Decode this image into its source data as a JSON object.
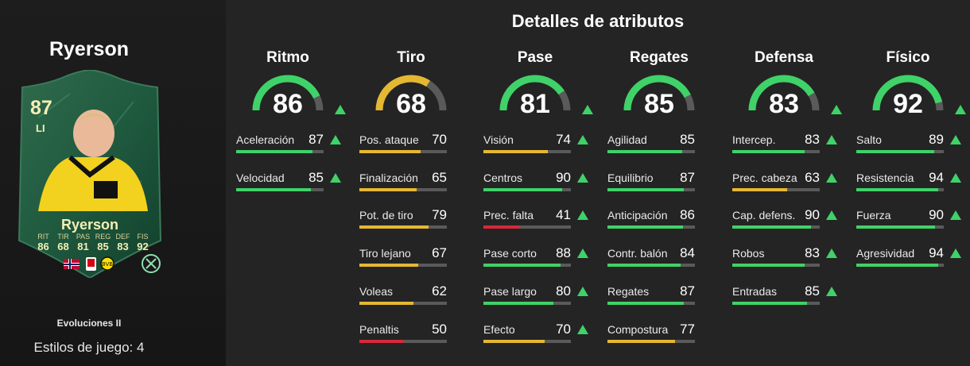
{
  "player": {
    "name": "Ryerson",
    "rating": "87",
    "position": "LI",
    "card_name": "Ryerson",
    "card_stats": [
      {
        "label": "RIT",
        "value": "86"
      },
      {
        "label": "TIR",
        "value": "68"
      },
      {
        "label": "PAS",
        "value": "81"
      },
      {
        "label": "REG",
        "value": "85"
      },
      {
        "label": "DEF",
        "value": "83"
      },
      {
        "label": "FIS",
        "value": "92"
      }
    ],
    "evolution": "Evoluciones II",
    "playstyles": "Estilos de juego: 4"
  },
  "title": "Detalles de atributos",
  "colors": {
    "green": "#3fd268",
    "yellow": "#e5b832",
    "red": "#d8283a",
    "track": "#5a5a5a"
  },
  "categories": [
    {
      "name": "Ritmo",
      "value": 86,
      "up": true,
      "stats": [
        {
          "label": "Aceleración",
          "value": 87,
          "up": true
        },
        {
          "label": "Velocidad",
          "value": 85,
          "up": true
        }
      ]
    },
    {
      "name": "Tiro",
      "value": 68,
      "up": false,
      "stats": [
        {
          "label": "Pos. ataque",
          "value": 70,
          "up": false
        },
        {
          "label": "Finalización",
          "value": 65,
          "up": false
        },
        {
          "label": "Pot. de tiro",
          "value": 79,
          "up": false
        },
        {
          "label": "Tiro lejano",
          "value": 67,
          "up": false
        },
        {
          "label": "Voleas",
          "value": 62,
          "up": false
        },
        {
          "label": "Penaltis",
          "value": 50,
          "up": false
        }
      ]
    },
    {
      "name": "Pase",
      "value": 81,
      "up": true,
      "stats": [
        {
          "label": "Visión",
          "value": 74,
          "up": true
        },
        {
          "label": "Centros",
          "value": 90,
          "up": true
        },
        {
          "label": "Prec. falta",
          "value": 41,
          "up": true
        },
        {
          "label": "Pase corto",
          "value": 88,
          "up": true
        },
        {
          "label": "Pase largo",
          "value": 80,
          "up": true
        },
        {
          "label": "Efecto",
          "value": 70,
          "up": true
        }
      ]
    },
    {
      "name": "Regates",
      "value": 85,
      "up": false,
      "stats": [
        {
          "label": "Agilidad",
          "value": 85,
          "up": false
        },
        {
          "label": "Equilibrio",
          "value": 87,
          "up": false
        },
        {
          "label": "Anticipación",
          "value": 86,
          "up": false
        },
        {
          "label": "Contr. balón",
          "value": 84,
          "up": false
        },
        {
          "label": "Regates",
          "value": 87,
          "up": false
        },
        {
          "label": "Compostura",
          "value": 77,
          "up": false
        }
      ]
    },
    {
      "name": "Defensa",
      "value": 83,
      "up": true,
      "stats": [
        {
          "label": "Intercep.",
          "value": 83,
          "up": true
        },
        {
          "label": "Prec. cabeza",
          "value": 63,
          "up": true
        },
        {
          "label": "Cap. defens.",
          "value": 90,
          "up": true
        },
        {
          "label": "Robos",
          "value": 83,
          "up": true
        },
        {
          "label": "Entradas",
          "value": 85,
          "up": true
        }
      ]
    },
    {
      "name": "Físico",
      "value": 92,
      "up": true,
      "stats": [
        {
          "label": "Salto",
          "value": 89,
          "up": true
        },
        {
          "label": "Resistencia",
          "value": 94,
          "up": true
        },
        {
          "label": "Fuerza",
          "value": 90,
          "up": true
        },
        {
          "label": "Agresividad",
          "value": 94,
          "up": true
        }
      ]
    }
  ]
}
